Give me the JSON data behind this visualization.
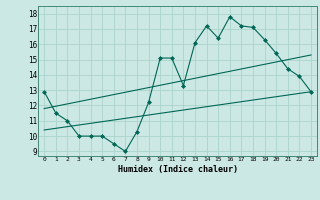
{
  "xlabel": "Humidex (Indice chaleur)",
  "bg_color": "#cce8e4",
  "grid_color": "#aad4cc",
  "line_color": "#006655",
  "xlim": [
    -0.5,
    23.5
  ],
  "ylim": [
    8.7,
    18.5
  ],
  "yticks": [
    9,
    10,
    11,
    12,
    13,
    14,
    15,
    16,
    17,
    18
  ],
  "xticks": [
    0,
    1,
    2,
    3,
    4,
    5,
    6,
    7,
    8,
    9,
    10,
    11,
    12,
    13,
    14,
    15,
    16,
    17,
    18,
    19,
    20,
    21,
    22,
    23
  ],
  "line1_x": [
    0,
    1,
    2,
    3,
    4,
    5,
    6,
    7,
    8,
    9,
    10,
    11,
    12,
    13,
    14,
    15,
    16,
    17,
    18,
    19,
    20,
    21,
    22,
    23
  ],
  "line1_y": [
    12.9,
    11.5,
    11.0,
    10.0,
    10.0,
    10.0,
    9.5,
    9.0,
    10.3,
    12.2,
    15.1,
    15.1,
    13.3,
    16.1,
    17.2,
    16.4,
    17.8,
    17.2,
    17.1,
    16.3,
    15.4,
    14.4,
    13.9,
    12.9
  ],
  "line2_x": [
    0,
    23
  ],
  "line2_y": [
    11.8,
    15.3
  ],
  "line3_x": [
    0,
    23
  ],
  "line3_y": [
    10.4,
    12.9
  ]
}
